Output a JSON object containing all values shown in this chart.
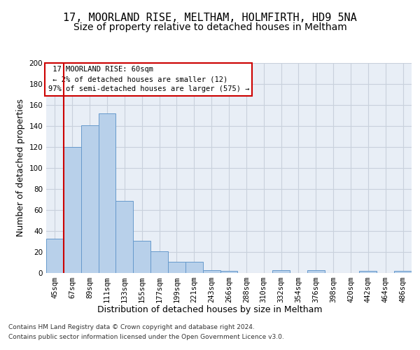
{
  "title1": "17, MOORLAND RISE, MELTHAM, HOLMFIRTH, HD9 5NA",
  "title2": "Size of property relative to detached houses in Meltham",
  "xlabel": "Distribution of detached houses by size in Meltham",
  "ylabel": "Number of detached properties",
  "footer1": "Contains HM Land Registry data © Crown copyright and database right 2024.",
  "footer2": "Contains public sector information licensed under the Open Government Licence v3.0.",
  "annotation_title": "17 MOORLAND RISE: 60sqm",
  "annotation_line2": "← 2% of detached houses are smaller (12)",
  "annotation_line3": "97% of semi-detached houses are larger (575) →",
  "bar_values": [
    33,
    120,
    141,
    152,
    69,
    31,
    21,
    11,
    11,
    3,
    2,
    0,
    0,
    3,
    0,
    3,
    0,
    0,
    2,
    0,
    2
  ],
  "bin_labels": [
    "45sqm",
    "67sqm",
    "89sqm",
    "111sqm",
    "133sqm",
    "155sqm",
    "177sqm",
    "199sqm",
    "221sqm",
    "243sqm",
    "266sqm",
    "288sqm",
    "310sqm",
    "332sqm",
    "354sqm",
    "376sqm",
    "398sqm",
    "420sqm",
    "442sqm",
    "464sqm",
    "486sqm"
  ],
  "bar_color": "#b8d0ea",
  "bar_edge_color": "#6699cc",
  "marker_color": "#cc0000",
  "ylim": [
    0,
    200
  ],
  "yticks": [
    0,
    20,
    40,
    60,
    80,
    100,
    120,
    140,
    160,
    180,
    200
  ],
  "grid_color": "#c8d0dc",
  "background_color": "#e8eef6",
  "annotation_box_color": "#ffffff",
  "annotation_border_color": "#cc0000",
  "title_fontsize": 11,
  "subtitle_fontsize": 10,
  "axis_label_fontsize": 9,
  "tick_fontsize": 7.5,
  "footer_fontsize": 6.5
}
